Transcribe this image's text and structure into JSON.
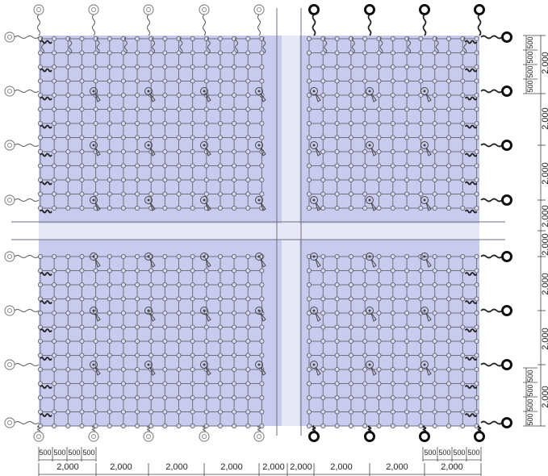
{
  "colors": {
    "shade": "#c9cbee",
    "grid": "#6f6f80",
    "node_fill": "#d9dbe6",
    "node_stroke": "#55556a",
    "anchor_open": "#8a8a8a",
    "anchor_solid": "#111111",
    "dim_line": "#444444",
    "text": "#222222"
  },
  "icons": {
    "open_anchor": "ring-anchor-icon",
    "solid_anchor": "bold-ring-anchor-icon",
    "sprinkler": "pendant-head-icon",
    "node": "grid-node-icon"
  },
  "dimensions": {
    "bottom_small": [
      "500",
      "500",
      "500",
      "500"
    ],
    "bottom_small_right": [
      "500",
      "500",
      "500",
      "500"
    ],
    "bottom_main": [
      "2,000",
      "2,000",
      "2,000",
      "2,000",
      "2,000",
      "2,000",
      "2,000",
      "2,000",
      "2,000"
    ],
    "right_small_top": [
      "500",
      "500",
      "500",
      "500"
    ],
    "right_small_bottom": [
      "500",
      "500",
      "500",
      "500"
    ],
    "right_main": [
      "2,000",
      "2,000",
      "2,000",
      "2,000",
      "2,000",
      "2,000",
      "2,000",
      "2,000"
    ]
  }
}
